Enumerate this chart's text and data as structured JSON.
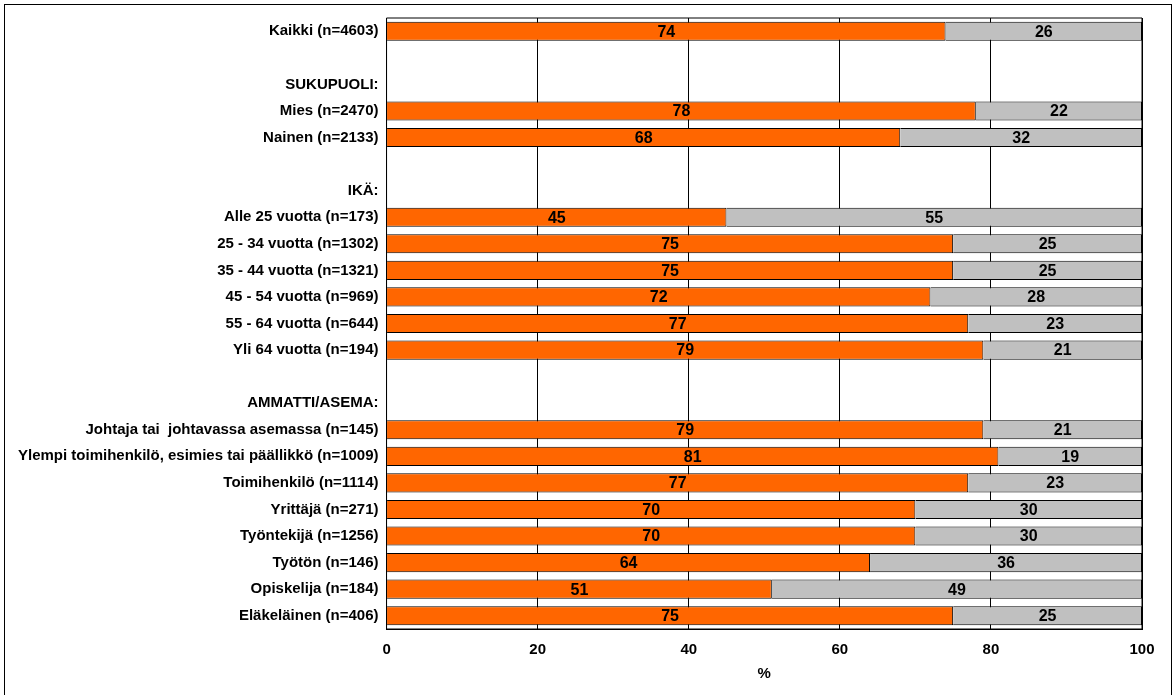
{
  "chart_data": {
    "type": "bar",
    "orientation": "horizontal",
    "stacked": true,
    "data_labels": true,
    "grid": "x",
    "legend": false,
    "xlabel": "%",
    "xlim": [
      0,
      100
    ],
    "xticks": [
      0,
      20,
      40,
      60,
      80,
      100
    ],
    "annotations": [
      "SUKUPUOLI:",
      "IKÄ:",
      "AMMATTI/ASEMA:"
    ],
    "categories": [
      "Kaikki (n=4603)",
      null,
      null,
      "Mies (n=2470)",
      "Nainen (n=2133)",
      null,
      null,
      "Alle 25 vuotta (n=173)",
      "25 - 34 vuotta (n=1302)",
      "35 - 44 vuotta (n=1321)",
      "45 - 54 vuotta (n=969)",
      "55 - 64 vuotta (n=644)",
      "Yli 64 vuotta (n=194)",
      null,
      null,
      "Johtaja tai  johtavassa asemassa (n=145)",
      "Ylempi toimihenkilö, esimies tai päällikkö (n=1009)",
      "Toimihenkilö (n=1114)",
      "Yrittäjä (n=271)",
      "Työntekijä (n=1256)",
      "Työtön (n=146)",
      "Opiskelija (n=184)",
      "Eläkeläinen (n=406)"
    ],
    "series": [
      {
        "color": "#ff6600",
        "values": [
          74,
          null,
          null,
          78,
          68,
          null,
          null,
          45,
          75,
          75,
          72,
          77,
          79,
          null,
          null,
          79,
          81,
          77,
          70,
          70,
          64,
          51,
          75
        ]
      },
      {
        "color": "#c0c0c0",
        "values": [
          26,
          null,
          null,
          22,
          32,
          null,
          null,
          55,
          25,
          25,
          28,
          23,
          21,
          null,
          null,
          21,
          19,
          23,
          30,
          30,
          36,
          49,
          25
        ]
      }
    ]
  }
}
